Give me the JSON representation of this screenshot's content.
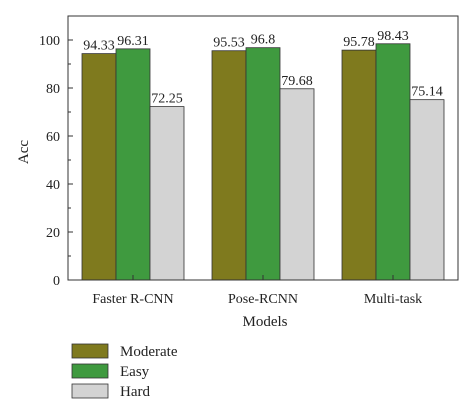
{
  "chart_data": {
    "type": "bar",
    "categories": [
      "Faster R-CNN",
      "Pose-RCNN",
      "Multi-task"
    ],
    "series": [
      {
        "name": "Moderate",
        "values": [
          94.33,
          95.53,
          95.78
        ],
        "labels": [
          "94.33",
          "95.53",
          "95.78"
        ],
        "color": "#7f7a1e"
      },
      {
        "name": "Easy",
        "values": [
          96.31,
          96.8,
          98.43
        ],
        "labels": [
          "96.31",
          "96.8",
          "98.43"
        ],
        "color": "#3f9a3f"
      },
      {
        "name": "Hard",
        "values": [
          72.25,
          79.68,
          75.14
        ],
        "labels": [
          "72.25",
          "79.68",
          "75.14"
        ],
        "color": "#d3d3d3"
      }
    ],
    "xlabel": "Models",
    "ylabel": "Acc",
    "ylim": [
      0,
      100
    ],
    "yticks": [
      "0",
      "20",
      "40",
      "60",
      "80",
      "100"
    ],
    "ymax_axis": 110,
    "grid": false,
    "legend_placement": "bottom-left"
  }
}
